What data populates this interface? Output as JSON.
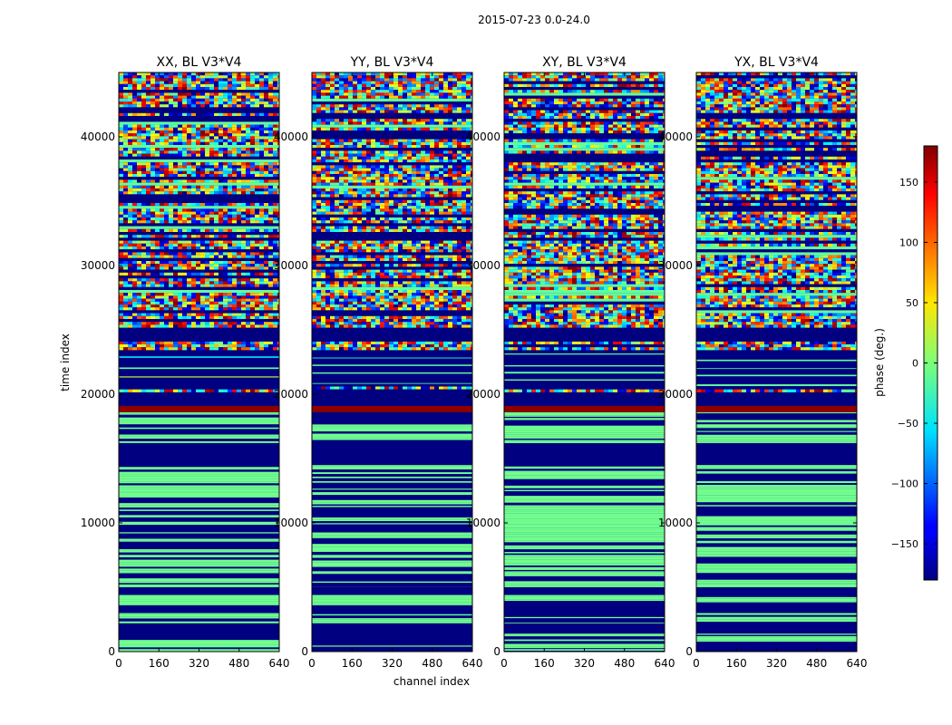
{
  "figure": {
    "suptitle": "2015-07-23 0.0-24.0"
  },
  "chart_data": {
    "type": "heatmap",
    "x": {
      "label": "channel index",
      "range": [
        0,
        640
      ],
      "ticks": [
        0,
        160,
        320,
        480,
        640
      ]
    },
    "y": {
      "label": "time index",
      "range": [
        0,
        45000
      ],
      "ticks": [
        0,
        10000,
        20000,
        30000,
        40000
      ]
    },
    "panels": [
      {
        "title": "XX, BL V3*V4"
      },
      {
        "title": "YY, BL V3*V4"
      },
      {
        "title": "XY, BL V3*V4"
      },
      {
        "title": "YX, BL V3*V4"
      }
    ],
    "colorbar": {
      "label": "phase (deg.)",
      "range": [
        -180,
        180
      ],
      "ticks": [
        -150,
        -100,
        -50,
        0,
        50,
        100,
        150
      ],
      "tick_labels": [
        "−150",
        "−100",
        "−50",
        "0",
        "50",
        "100",
        "150"
      ],
      "colormap": "jet"
    },
    "bands": [
      {
        "from": 0,
        "to": 200,
        "kind": "stripe"
      },
      {
        "from": 200,
        "to": 1400,
        "kind": "stripe"
      },
      {
        "from": 1400,
        "to": 2200,
        "kind": "solid",
        "value": -180
      },
      {
        "from": 2200,
        "to": 3000,
        "kind": "stripe"
      },
      {
        "from": 3000,
        "to": 3600,
        "kind": "solid",
        "value": -180
      },
      {
        "from": 3600,
        "to": 4400,
        "kind": "stripe"
      },
      {
        "from": 4400,
        "to": 5000,
        "kind": "solid",
        "value": -180
      },
      {
        "from": 5000,
        "to": 14500,
        "kind": "stripe"
      },
      {
        "from": 14500,
        "to": 16200,
        "kind": "solid",
        "value": -180
      },
      {
        "from": 16200,
        "to": 18600,
        "kind": "stripe"
      },
      {
        "from": 18600,
        "to": 19100,
        "kind": "solid",
        "value": 175
      },
      {
        "from": 19100,
        "to": 20300,
        "kind": "solid",
        "value": -180
      },
      {
        "from": 20300,
        "to": 20600,
        "kind": "noise"
      },
      {
        "from": 20600,
        "to": 23600,
        "kind": "mostly_solid",
        "value": -180
      },
      {
        "from": 23600,
        "to": 24100,
        "kind": "noise"
      },
      {
        "from": 24100,
        "to": 25300,
        "kind": "solid",
        "value": -180
      },
      {
        "from": 25300,
        "to": 45000,
        "kind": "noise"
      }
    ]
  }
}
